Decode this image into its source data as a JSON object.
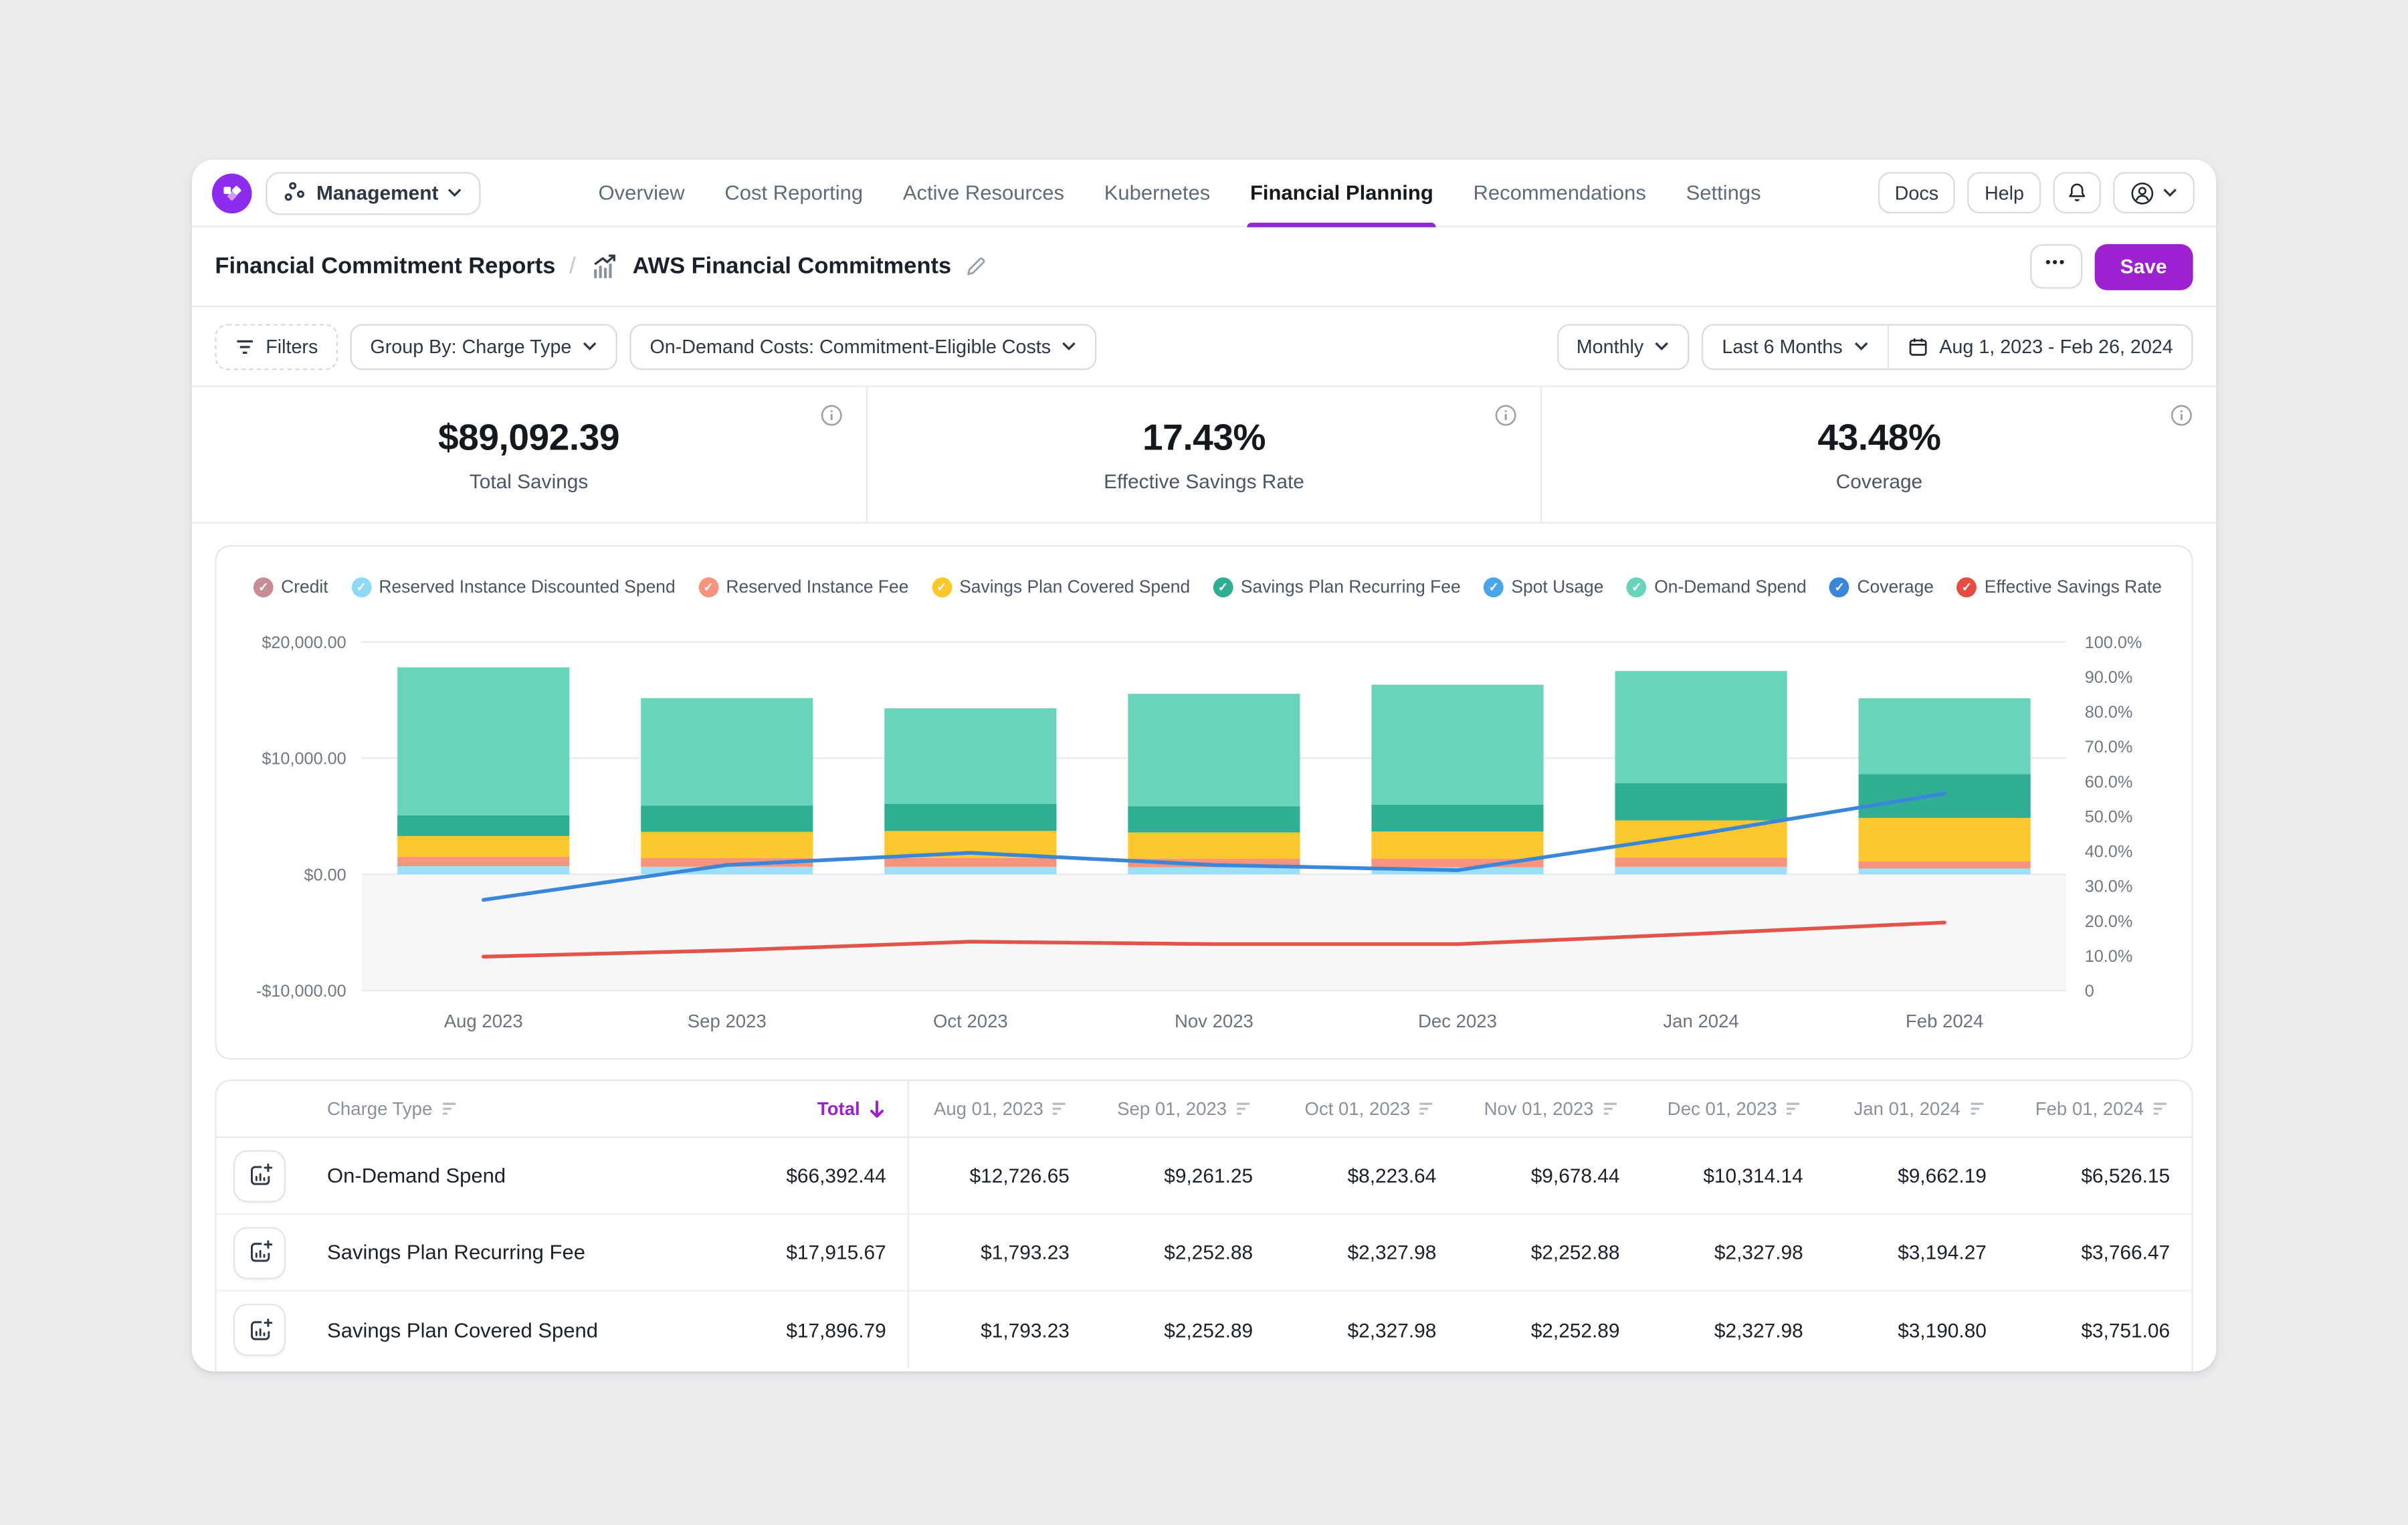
{
  "accent": {
    "purple": "#9e21cf",
    "underline": "#8f2ad9",
    "logo_purple": "#8d2bee",
    "total_sort": "#a21cc9"
  },
  "nav": {
    "management_label": "Management",
    "tabs": [
      {
        "label": "Overview",
        "active": false
      },
      {
        "label": "Cost Reporting",
        "active": false
      },
      {
        "label": "Active Resources",
        "active": false
      },
      {
        "label": "Kubernetes",
        "active": false
      },
      {
        "label": "Financial Planning",
        "active": true
      },
      {
        "label": "Recommendations",
        "active": false
      },
      {
        "label": "Settings",
        "active": false
      }
    ],
    "docs_label": "Docs",
    "help_label": "Help"
  },
  "breadcrumb": {
    "parent": "Financial Commitment Reports",
    "separator": "/",
    "current": "AWS Financial Commitments"
  },
  "header_actions": {
    "more_label": "•••",
    "save_label": "Save"
  },
  "filter_bar": {
    "filters_label": "Filters",
    "group_by_label": "Group By: Charge Type",
    "costs_label": "On-Demand Costs: Commitment-Eligible Costs",
    "granularity_label": "Monthly",
    "preset_label": "Last 6 Months",
    "date_range_label": "Aug 1, 2023 - Feb 26, 2024"
  },
  "stats": [
    {
      "value": "$89,092.39",
      "label": "Total Savings"
    },
    {
      "value": "17.43%",
      "label": "Effective Savings Rate"
    },
    {
      "value": "43.48%",
      "label": "Coverage"
    }
  ],
  "legend": [
    {
      "label": "Credit",
      "color": "#c78d96"
    },
    {
      "label": "Reserved Instance Discounted Spend",
      "color": "#8fd9f5"
    },
    {
      "label": "Reserved Instance Fee",
      "color": "#f8937e"
    },
    {
      "label": "Savings Plan Covered Spend",
      "color": "#fbc72f"
    },
    {
      "label": "Savings Plan Recurring Fee",
      "color": "#2fae93"
    },
    {
      "label": "Spot Usage",
      "color": "#49a5ea"
    },
    {
      "label": "On-Demand Spend",
      "color": "#6ad4bb"
    },
    {
      "label": "Coverage",
      "color": "#3a86d9"
    },
    {
      "label": "Effective Savings Rate",
      "color": "#e64c41"
    }
  ],
  "chart_data": {
    "type": "bar",
    "subtype": "stacked-bar-with-line-overlay",
    "categories": [
      "Aug 2023",
      "Sep 2023",
      "Oct 2023",
      "Nov 2023",
      "Dec 2023",
      "Jan 2024",
      "Feb 2024"
    ],
    "series": [
      {
        "name": "Reserved Instance Discounted Spend",
        "type": "bar",
        "axis": "left",
        "color": "#9edff7",
        "values": [
          700,
          650,
          650,
          600,
          600,
          650,
          500
        ],
        "estimated": true
      },
      {
        "name": "Reserved Instance Fee",
        "type": "bar",
        "axis": "left",
        "color": "#f8937e",
        "values": [
          800,
          750,
          750,
          750,
          750,
          800,
          600
        ],
        "estimated": true
      },
      {
        "name": "Savings Plan Covered Spend",
        "type": "bar",
        "axis": "left",
        "color": "#fcc72f",
        "values": [
          1793.23,
          2252.89,
          2327.98,
          2252.89,
          2327.98,
          3190.8,
          3751.06
        ]
      },
      {
        "name": "Savings Plan Recurring Fee",
        "type": "bar",
        "axis": "left",
        "color": "#2fae93",
        "values": [
          1793.23,
          2252.88,
          2327.98,
          2252.88,
          2327.98,
          3194.27,
          3766.47
        ]
      },
      {
        "name": "On-Demand Spend",
        "type": "bar",
        "axis": "left",
        "color": "#6ad4bb",
        "values": [
          12726.65,
          9261.25,
          8223.64,
          9678.44,
          10314.14,
          9662.19,
          6526.15
        ]
      },
      {
        "name": "Coverage",
        "type": "line",
        "axis": "right",
        "color": "#3a86d9",
        "unit": "%",
        "values": [
          26,
          36,
          39.5,
          36,
          34.5,
          45,
          56.5
        ],
        "estimated": true
      },
      {
        "name": "Effective Savings Rate",
        "type": "line",
        "axis": "right",
        "color": "#e2544a",
        "unit": "%",
        "values": [
          9.7,
          11.5,
          14,
          13.3,
          13.3,
          16.3,
          19.5
        ],
        "estimated": true
      }
    ],
    "left_axis": {
      "unit": "$",
      "min": -10000,
      "max": 20000,
      "ticks": [
        "$20,000.00",
        "$10,000.00",
        "$0.00",
        "-$10,000.00"
      ],
      "tick_values": [
        20000,
        10000,
        0,
        -10000
      ]
    },
    "right_axis": {
      "unit": "%",
      "min": 0,
      "max": 100,
      "ticks": [
        "100.0%",
        "90.0%",
        "80.0%",
        "70.0%",
        "60.0%",
        "50.0%",
        "40.0%",
        "30.0%",
        "20.0%",
        "10.0%",
        "0"
      ],
      "tick_values": [
        100,
        90,
        80,
        70,
        60,
        50,
        40,
        30,
        20,
        10,
        0
      ]
    },
    "grid": "horizontal gridlines at dollar ticks only; shaded band below $0.00",
    "legend_position": "top"
  },
  "table": {
    "columns": [
      {
        "label": "Charge Type",
        "sortable": true
      },
      {
        "label": "Total",
        "sortable": true,
        "sorted": "desc"
      },
      {
        "label": "Aug 01, 2023",
        "sortable": true
      },
      {
        "label": "Sep 01, 2023",
        "sortable": true
      },
      {
        "label": "Oct 01, 2023",
        "sortable": true
      },
      {
        "label": "Nov 01, 2023",
        "sortable": true
      },
      {
        "label": "Dec 01, 2023",
        "sortable": true
      },
      {
        "label": "Jan 01, 2024",
        "sortable": true
      },
      {
        "label": "Feb 01, 2024",
        "sortable": true
      }
    ],
    "rows": [
      {
        "charge_type": "On-Demand Spend",
        "total": "$66,392.44",
        "values": [
          "$12,726.65",
          "$9,261.25",
          "$8,223.64",
          "$9,678.44",
          "$10,314.14",
          "$9,662.19",
          "$6,526.15"
        ]
      },
      {
        "charge_type": "Savings Plan Recurring Fee",
        "total": "$17,915.67",
        "values": [
          "$1,793.23",
          "$2,252.88",
          "$2,327.98",
          "$2,252.88",
          "$2,327.98",
          "$3,194.27",
          "$3,766.47"
        ]
      },
      {
        "charge_type": "Savings Plan Covered Spend",
        "total": "$17,896.79",
        "values": [
          "$1,793.23",
          "$2,252.89",
          "$2,327.98",
          "$2,252.89",
          "$2,327.98",
          "$3,190.80",
          "$3,751.06"
        ]
      }
    ]
  }
}
